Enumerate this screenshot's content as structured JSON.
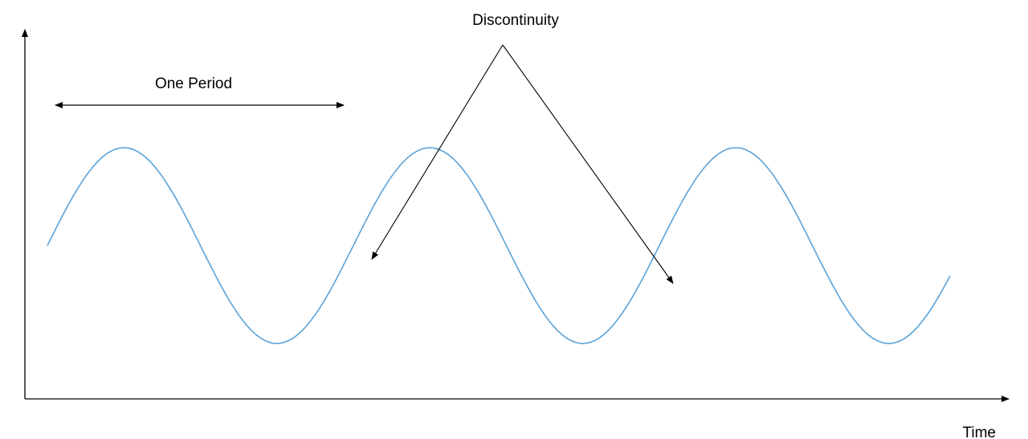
{
  "labels": {
    "one_period": "One Period",
    "discontinuity": "Discontinuity",
    "x_axis": "Time"
  },
  "waveform": {
    "shape": "truncated sine (each period restarts at mid-level)",
    "periods": 3,
    "cycle_fraction_per_period": 0.95,
    "color": "#5BA3D9"
  },
  "colors": {
    "axis": "#000000",
    "annotation": "#000000",
    "wave": "#5BA3D9"
  }
}
